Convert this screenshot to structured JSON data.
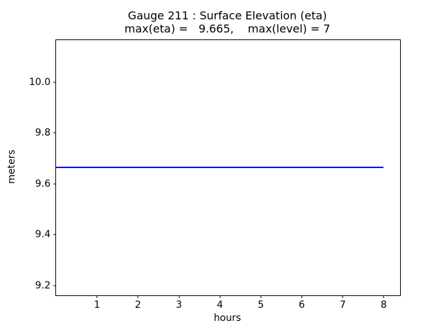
{
  "chart_data": {
    "type": "line",
    "title": "Gauge 211 : Surface Elevation (eta)",
    "subtitle": "max(eta) =   9.665,    max(level) = 7",
    "xlabel": "hours",
    "ylabel": "meters",
    "xlim": [
      0,
      8.4
    ],
    "ylim": [
      9.162,
      10.165
    ],
    "xticks": [
      1,
      2,
      3,
      4,
      5,
      6,
      7,
      8
    ],
    "yticks": [
      9.2,
      9.4,
      9.6,
      9.8,
      10.0
    ],
    "grid": false,
    "legend_visible": false,
    "series": [
      {
        "name": "surface-elevation-eta",
        "color": "#0000ff",
        "x": [
          0,
          8
        ],
        "y": [
          9.665,
          9.665
        ]
      }
    ],
    "annotations": {
      "max_eta": 9.665,
      "max_level": 7,
      "gauge_number": 211
    },
    "colors": {
      "line": "#0000ff",
      "axes": "#000000",
      "background": "#ffffff",
      "text": "#000000"
    }
  }
}
